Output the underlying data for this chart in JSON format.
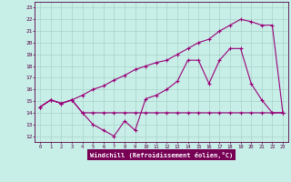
{
  "xlabel": "Windchill (Refroidissement éolien,°C)",
  "xlim": [
    -0.5,
    23.5
  ],
  "ylim": [
    11.5,
    23.5
  ],
  "xticks": [
    0,
    1,
    2,
    3,
    4,
    5,
    6,
    7,
    8,
    9,
    10,
    11,
    12,
    13,
    14,
    15,
    16,
    17,
    18,
    19,
    20,
    21,
    22,
    23
  ],
  "yticks": [
    12,
    13,
    14,
    15,
    16,
    17,
    18,
    19,
    20,
    21,
    22,
    23
  ],
  "bg_color": "#c8eee8",
  "line_color": "#990077",
  "grid_color": "#a0ccc0",
  "line1_x": [
    0,
    1,
    2,
    3,
    4,
    5,
    6,
    7,
    8,
    9,
    10,
    11,
    12,
    13,
    14,
    15,
    16,
    17,
    18,
    19,
    20,
    21,
    22,
    23
  ],
  "line1_y": [
    14.5,
    15.1,
    14.8,
    15.1,
    14.0,
    13.0,
    12.5,
    12.0,
    13.3,
    12.5,
    15.2,
    15.5,
    16.0,
    16.7,
    18.5,
    18.5,
    16.5,
    18.5,
    19.5,
    19.5,
    16.5,
    15.1,
    14.0,
    14.0
  ],
  "line2_x": [
    0,
    1,
    2,
    3,
    4,
    5,
    6,
    7,
    8,
    9,
    10,
    11,
    12,
    13,
    14,
    15,
    16,
    17,
    18,
    19,
    20,
    21,
    22,
    23
  ],
  "line2_y": [
    14.5,
    15.1,
    14.8,
    15.1,
    14.0,
    14.0,
    14.0,
    14.0,
    14.0,
    14.0,
    14.0,
    14.0,
    14.0,
    14.0,
    14.0,
    14.0,
    14.0,
    14.0,
    14.0,
    14.0,
    14.0,
    14.0,
    14.0,
    14.0
  ],
  "line3_x": [
    0,
    1,
    2,
    3,
    4,
    5,
    6,
    7,
    8,
    9,
    10,
    11,
    12,
    13,
    14,
    15,
    16,
    17,
    18,
    19,
    20,
    21,
    22,
    23
  ],
  "line3_y": [
    14.5,
    15.1,
    14.8,
    15.1,
    15.5,
    16.0,
    16.3,
    16.8,
    17.2,
    17.7,
    18.0,
    18.3,
    18.5,
    19.0,
    19.5,
    20.0,
    20.3,
    21.0,
    21.5,
    22.0,
    21.8,
    21.5,
    21.5,
    14.0
  ]
}
